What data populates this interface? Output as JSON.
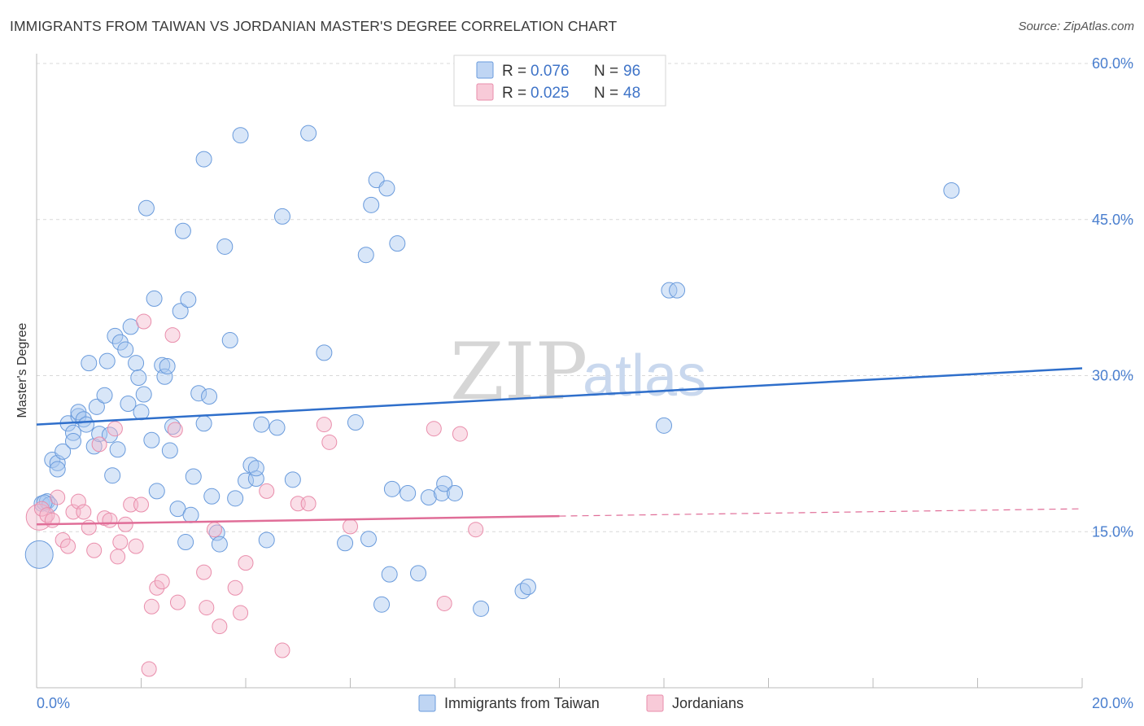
{
  "title": "IMMIGRANTS FROM TAIWAN VS JORDANIAN MASTER'S DEGREE CORRELATION CHART",
  "source": "Source: ZipAtlas.com",
  "watermark": {
    "zip": "ZIP",
    "atlas": "atlas"
  },
  "colors": {
    "taiwan_fill": "#a9c7ef",
    "taiwan_stroke": "#6a9bdc",
    "taiwan_line": "#2f6fcb",
    "jordan_fill": "#f5b8cb",
    "jordan_stroke": "#e98dab",
    "jordan_line": "#e06e98",
    "grid": "#d9d9d9",
    "axis_label": "#4a7fcf"
  },
  "legend": {
    "rows": [
      {
        "r_label": "R =",
        "r_value": "0.076",
        "n_label": "N =",
        "n_value": "96"
      },
      {
        "r_label": "R =",
        "r_value": "0.025",
        "n_label": "N =",
        "n_value": "48"
      }
    ]
  },
  "chart_data": {
    "type": "scatter",
    "title": "IMMIGRANTS FROM TAIWAN VS JORDANIAN MASTER'S DEGREE CORRELATION CHART",
    "xlabel": "",
    "ylabel": "Master's Degree",
    "xlim": [
      0,
      20
    ],
    "ylim": [
      0,
      60
    ],
    "x_tick_labels": {
      "min": "0.0%",
      "max": "20.0%"
    },
    "y_ticks": [
      {
        "value": 15,
        "label": "15.0%"
      },
      {
        "value": 30,
        "label": "30.0%"
      },
      {
        "value": 45,
        "label": "45.0%"
      },
      {
        "value": 60,
        "label": "60.0%"
      }
    ],
    "grid": true,
    "legend_position": "top-center",
    "series": [
      {
        "name": "Immigrants from Taiwan",
        "R": 0.076,
        "N": 96,
        "trend": {
          "x0": 0,
          "y0": 25.3,
          "x1": 20,
          "y1": 30.7
        },
        "points": [
          [
            0.1,
            17.7
          ],
          [
            0.2,
            17.9
          ],
          [
            0.25,
            17.6
          ],
          [
            0.3,
            21.9
          ],
          [
            0.4,
            21.6
          ],
          [
            0.4,
            21.0
          ],
          [
            0.5,
            22.7
          ],
          [
            0.6,
            25.4
          ],
          [
            0.7,
            24.5
          ],
          [
            0.7,
            23.7
          ],
          [
            0.8,
            26.1
          ],
          [
            0.8,
            26.5
          ],
          [
            0.9,
            25.8
          ],
          [
            0.95,
            25.3
          ],
          [
            1.0,
            31.2
          ],
          [
            1.1,
            23.2
          ],
          [
            1.15,
            27.0
          ],
          [
            1.2,
            24.4
          ],
          [
            1.3,
            28.1
          ],
          [
            1.35,
            31.4
          ],
          [
            1.4,
            24.3
          ],
          [
            1.45,
            20.4
          ],
          [
            1.5,
            33.8
          ],
          [
            1.55,
            22.9
          ],
          [
            1.6,
            33.2
          ],
          [
            1.7,
            32.5
          ],
          [
            1.75,
            27.3
          ],
          [
            1.8,
            34.7
          ],
          [
            1.9,
            31.2
          ],
          [
            1.95,
            29.8
          ],
          [
            2.0,
            26.5
          ],
          [
            2.05,
            28.2
          ],
          [
            2.1,
            46.1
          ],
          [
            2.2,
            23.8
          ],
          [
            2.25,
            37.4
          ],
          [
            2.3,
            18.9
          ],
          [
            2.4,
            31.0
          ],
          [
            2.45,
            29.9
          ],
          [
            2.5,
            30.9
          ],
          [
            2.55,
            22.8
          ],
          [
            2.6,
            25.1
          ],
          [
            2.7,
            17.2
          ],
          [
            2.75,
            36.2
          ],
          [
            2.8,
            43.9
          ],
          [
            2.85,
            14.0
          ],
          [
            2.9,
            37.3
          ],
          [
            2.95,
            16.6
          ],
          [
            3.0,
            20.3
          ],
          [
            3.1,
            28.3
          ],
          [
            3.2,
            50.8
          ],
          [
            3.2,
            25.4
          ],
          [
            3.3,
            28.0
          ],
          [
            3.35,
            18.4
          ],
          [
            3.45,
            14.9
          ],
          [
            3.5,
            13.8
          ],
          [
            3.6,
            42.4
          ],
          [
            3.7,
            33.4
          ],
          [
            3.8,
            18.2
          ],
          [
            3.9,
            53.1
          ],
          [
            4.0,
            19.9
          ],
          [
            4.1,
            21.4
          ],
          [
            4.2,
            20.1
          ],
          [
            4.2,
            21.1
          ],
          [
            4.3,
            25.3
          ],
          [
            4.4,
            14.2
          ],
          [
            4.6,
            25.0
          ],
          [
            4.7,
            45.3
          ],
          [
            4.9,
            20.0
          ],
          [
            5.2,
            53.3
          ],
          [
            5.5,
            32.2
          ],
          [
            5.9,
            13.9
          ],
          [
            6.1,
            25.5
          ],
          [
            6.3,
            41.6
          ],
          [
            6.35,
            14.3
          ],
          [
            6.4,
            46.4
          ],
          [
            6.5,
            48.8
          ],
          [
            6.6,
            8.0
          ],
          [
            6.7,
            48.0
          ],
          [
            6.75,
            10.9
          ],
          [
            6.8,
            19.1
          ],
          [
            6.9,
            42.7
          ],
          [
            7.1,
            18.7
          ],
          [
            7.3,
            11.0
          ],
          [
            7.5,
            18.3
          ],
          [
            7.75,
            18.7
          ],
          [
            7.8,
            19.6
          ],
          [
            8.0,
            18.7
          ],
          [
            8.5,
            7.6
          ],
          [
            9.3,
            9.3
          ],
          [
            9.4,
            9.7
          ],
          [
            12.0,
            25.2
          ],
          [
            12.1,
            38.2
          ],
          [
            12.25,
            38.2
          ],
          [
            17.5,
            47.8
          ],
          [
            0.05,
            12.8
          ],
          [
            0.15,
            17.8
          ]
        ]
      },
      {
        "name": "Jordanians",
        "R": 0.025,
        "N": 48,
        "trend": {
          "x0": 0,
          "y0": 15.7,
          "x1": 10,
          "y1": 16.5,
          "dash_to_x": 20,
          "dash_to_y": 17.2
        },
        "points": [
          [
            0.05,
            16.4
          ],
          [
            0.1,
            17.2
          ],
          [
            0.2,
            16.6
          ],
          [
            0.3,
            16.1
          ],
          [
            0.4,
            18.3
          ],
          [
            0.5,
            14.2
          ],
          [
            0.6,
            13.6
          ],
          [
            0.7,
            16.9
          ],
          [
            0.8,
            17.9
          ],
          [
            0.9,
            16.9
          ],
          [
            1.0,
            15.4
          ],
          [
            1.1,
            13.2
          ],
          [
            1.2,
            23.4
          ],
          [
            1.3,
            16.3
          ],
          [
            1.4,
            16.1
          ],
          [
            1.5,
            24.9
          ],
          [
            1.55,
            12.6
          ],
          [
            1.6,
            14.0
          ],
          [
            1.7,
            15.7
          ],
          [
            1.8,
            17.6
          ],
          [
            1.9,
            13.6
          ],
          [
            2.0,
            17.6
          ],
          [
            2.05,
            35.2
          ],
          [
            2.15,
            1.8
          ],
          [
            2.2,
            7.8
          ],
          [
            2.3,
            9.6
          ],
          [
            2.4,
            10.2
          ],
          [
            2.6,
            33.9
          ],
          [
            2.65,
            24.8
          ],
          [
            2.7,
            8.2
          ],
          [
            3.2,
            11.1
          ],
          [
            3.25,
            7.7
          ],
          [
            3.4,
            15.2
          ],
          [
            3.5,
            5.9
          ],
          [
            3.8,
            9.6
          ],
          [
            3.9,
            7.2
          ],
          [
            4.0,
            12.0
          ],
          [
            4.4,
            18.9
          ],
          [
            4.7,
            3.6
          ],
          [
            5.0,
            17.7
          ],
          [
            5.2,
            17.7
          ],
          [
            5.5,
            25.3
          ],
          [
            5.6,
            23.6
          ],
          [
            6.0,
            15.5
          ],
          [
            7.6,
            24.9
          ],
          [
            7.8,
            8.1
          ],
          [
            8.1,
            24.4
          ],
          [
            8.4,
            15.2
          ]
        ]
      }
    ]
  }
}
